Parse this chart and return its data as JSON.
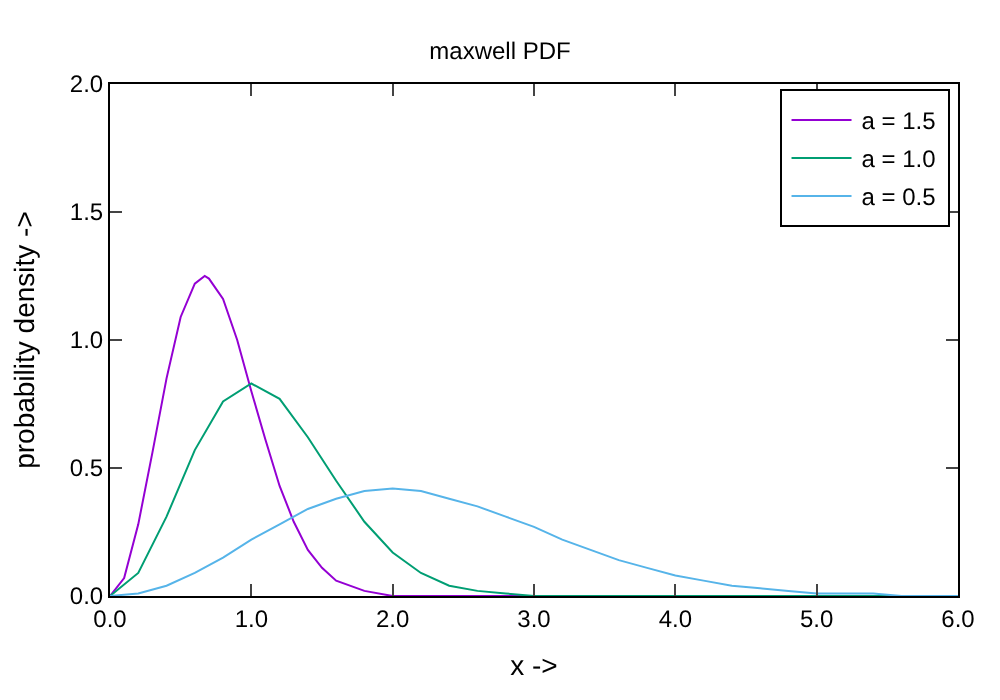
{
  "chart_data": {
    "type": "line",
    "title": "maxwell PDF",
    "xlabel": "x ->",
    "ylabel": "probability density ->",
    "xlim": [
      0,
      6
    ],
    "ylim": [
      0,
      2
    ],
    "xticks": [
      {
        "value": 0,
        "label": "0.0"
      },
      {
        "value": 1,
        "label": "1.0"
      },
      {
        "value": 2,
        "label": "2.0"
      },
      {
        "value": 3,
        "label": "3.0"
      },
      {
        "value": 4,
        "label": "4.0"
      },
      {
        "value": 5,
        "label": "5.0"
      },
      {
        "value": 6,
        "label": "6.0"
      }
    ],
    "yticks": [
      {
        "value": 0,
        "label": "0.0"
      },
      {
        "value": 0.5,
        "label": "0.5"
      },
      {
        "value": 1,
        "label": "1.0"
      },
      {
        "value": 1.5,
        "label": "1.5"
      },
      {
        "value": 2,
        "label": "2.0"
      }
    ],
    "grid": false,
    "legend": "top right",
    "marker": "none",
    "line_style": "solid",
    "series": [
      {
        "name": "a = 1.5",
        "color": "#9400d3",
        "x": [
          0,
          0.1,
          0.2,
          0.3,
          0.4,
          0.5,
          0.6,
          0.67,
          0.7,
          0.8,
          0.9,
          1.0,
          1.1,
          1.2,
          1.3,
          1.4,
          1.5,
          1.6,
          1.8,
          2.0,
          2.4,
          6.0
        ],
        "values": [
          0,
          0.07,
          0.28,
          0.56,
          0.85,
          1.09,
          1.22,
          1.25,
          1.24,
          1.16,
          1.0,
          0.8,
          0.61,
          0.43,
          0.29,
          0.18,
          0.11,
          0.06,
          0.02,
          0,
          0,
          0
        ]
      },
      {
        "name": "a = 1.0",
        "color": "#009e73",
        "x": [
          0,
          0.2,
          0.4,
          0.6,
          0.8,
          1.0,
          1.2,
          1.4,
          1.6,
          1.8,
          2.0,
          2.2,
          2.4,
          2.6,
          2.8,
          3.0,
          3.5,
          6.0
        ],
        "values": [
          0,
          0.09,
          0.31,
          0.57,
          0.76,
          0.83,
          0.77,
          0.62,
          0.45,
          0.29,
          0.17,
          0.09,
          0.04,
          0.02,
          0.01,
          0,
          0,
          0
        ]
      },
      {
        "name": "a = 0.5",
        "color": "#56b4e9",
        "x": [
          0,
          0.2,
          0.4,
          0.6,
          0.8,
          1.0,
          1.2,
          1.4,
          1.6,
          1.8,
          2.0,
          2.2,
          2.4,
          2.6,
          2.8,
          3.0,
          3.2,
          3.4,
          3.6,
          3.8,
          4.0,
          4.2,
          4.4,
          4.6,
          4.8,
          5.0,
          5.2,
          5.4,
          5.6,
          5.8,
          6.0
        ],
        "values": [
          0,
          0.01,
          0.04,
          0.09,
          0.15,
          0.22,
          0.28,
          0.34,
          0.38,
          0.41,
          0.42,
          0.41,
          0.38,
          0.35,
          0.31,
          0.27,
          0.22,
          0.18,
          0.14,
          0.11,
          0.08,
          0.06,
          0.04,
          0.03,
          0.02,
          0.01,
          0.01,
          0.01,
          0,
          0,
          0
        ]
      }
    ]
  }
}
